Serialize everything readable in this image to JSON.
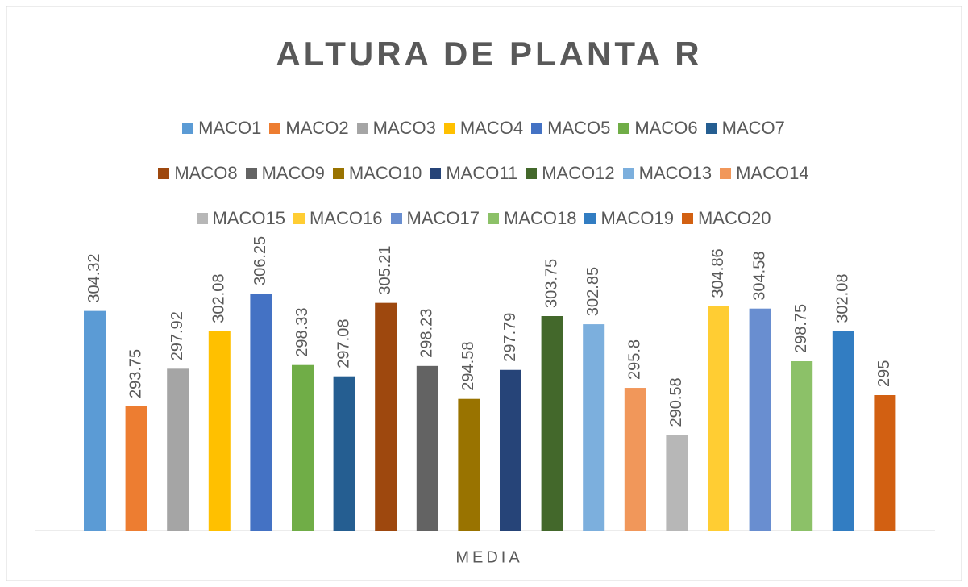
{
  "chart_data": {
    "type": "bar",
    "title": "ALTURA DE PLANTA R",
    "categories": [
      "MEDIA"
    ],
    "ylim": [
      280,
      310
    ],
    "series": [
      {
        "name": "MACO1",
        "color": "#5b9bd5",
        "values": [
          304.32
        ]
      },
      {
        "name": "MACO2",
        "color": "#ed7d31",
        "values": [
          293.75
        ]
      },
      {
        "name": "MACO3",
        "color": "#a5a5a5",
        "values": [
          297.92
        ]
      },
      {
        "name": "MACO4",
        "color": "#ffc000",
        "values": [
          302.08
        ]
      },
      {
        "name": "MACO5",
        "color": "#4472c4",
        "values": [
          306.25
        ]
      },
      {
        "name": "MACO6",
        "color": "#70ad47",
        "values": [
          298.33
        ]
      },
      {
        "name": "MACO7",
        "color": "#255e91",
        "values": [
          297.08
        ]
      },
      {
        "name": "MACO8",
        "color": "#9e480e",
        "values": [
          305.21
        ]
      },
      {
        "name": "MACO9",
        "color": "#636363",
        "values": [
          298.23
        ]
      },
      {
        "name": "MACO10",
        "color": "#997300",
        "values": [
          294.58
        ]
      },
      {
        "name": "MACO11",
        "color": "#264478",
        "values": [
          297.79
        ]
      },
      {
        "name": "MACO12",
        "color": "#43682b",
        "values": [
          303.75
        ]
      },
      {
        "name": "MACO13",
        "color": "#7cafdd",
        "values": [
          302.85
        ]
      },
      {
        "name": "MACO14",
        "color": "#f1975a",
        "values": [
          295.8
        ]
      },
      {
        "name": "MACO15",
        "color": "#b7b7b7",
        "values": [
          290.58
        ]
      },
      {
        "name": "MACO16",
        "color": "#ffcd33",
        "values": [
          304.86
        ]
      },
      {
        "name": "MACO17",
        "color": "#698ed0",
        "values": [
          304.58
        ]
      },
      {
        "name": "MACO18",
        "color": "#8cc168",
        "values": [
          298.75
        ]
      },
      {
        "name": "MACO19",
        "color": "#327dc2",
        "values": [
          302.08
        ]
      },
      {
        "name": "MACO20",
        "color": "#d26012",
        "values": [
          295
        ]
      }
    ]
  }
}
